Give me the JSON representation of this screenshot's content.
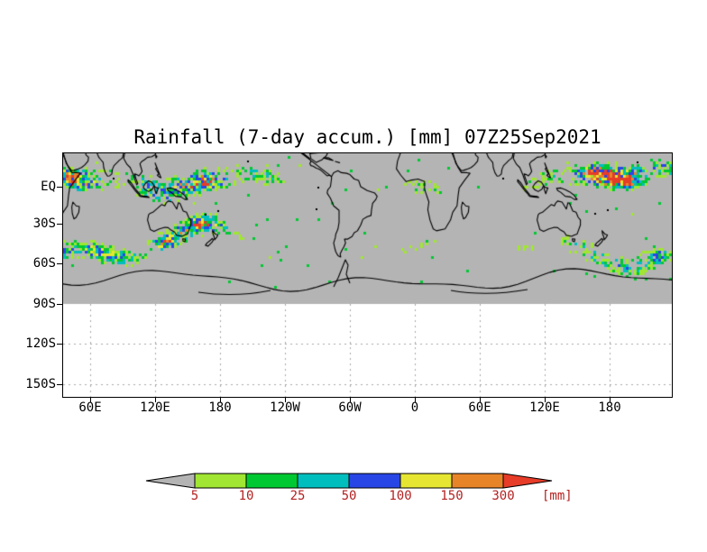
{
  "title": "Rainfall (7-day accum.) [mm] 07Z25Sep2021",
  "axes": {
    "y_ticks": [
      "EQ",
      "30S",
      "60S",
      "90S",
      "120S",
      "150S"
    ],
    "x_ticks": [
      "60E",
      "120E",
      "180",
      "120W",
      "60W",
      "0",
      "60E",
      "120E",
      "180"
    ]
  },
  "colorbar": {
    "labels": [
      "5",
      "10",
      "25",
      "50",
      "100",
      "150",
      "300"
    ],
    "unit": "[mm]",
    "label_color": "#b22222",
    "segments": [
      {
        "range": "<5",
        "color": "#b4b4b4"
      },
      {
        "range": "5-10",
        "color": "#a0e632"
      },
      {
        "range": "10-25",
        "color": "#00c832"
      },
      {
        "range": "25-50",
        "color": "#00bebe"
      },
      {
        "range": "50-100",
        "color": "#2846e6"
      },
      {
        "range": "100-150",
        "color": "#e6e632"
      },
      {
        "range": "150-300",
        "color": "#e88428"
      },
      {
        "range": ">300",
        "color": "#e63c28"
      }
    ]
  },
  "map": {
    "background_color": "#b4b4b4",
    "below_90s_color": "#ffffff",
    "coast_color": "#000000",
    "grid_color": "#a8a8a8",
    "frame_color": "#000000",
    "rain_colors": [
      "#a0e632",
      "#00c832",
      "#00bebe",
      "#2846e6",
      "#e6e632",
      "#e88428",
      "#e63c28"
    ]
  },
  "chart_data": {
    "type": "heatmap",
    "title": "Rainfall (7-day accum.) [mm] 07Z25Sep2021",
    "variable": "7-day accumulated rainfall",
    "unit": "mm",
    "time_label": "07Z25Sep2021",
    "levels": [
      5,
      10,
      25,
      50,
      100,
      150,
      300
    ],
    "level_colors": [
      "#b4b4b4",
      "#a0e632",
      "#00c832",
      "#00bebe",
      "#2846e6",
      "#e6e632",
      "#e88428",
      "#e63c28"
    ],
    "level_meaning": "gray <5mm, then shaded classes 5-10, 10-25, 25-50, 50-100, 100-150, 150-300, >300 mm",
    "x_tick_labels": [
      "60E",
      "120E",
      "180",
      "120W",
      "60W",
      "0",
      "60E",
      "120E",
      "180"
    ],
    "y_tick_labels": [
      "EQ",
      "30S",
      "60S",
      "90S",
      "120S",
      "150S"
    ],
    "legend_position": "bottom horizontal arrow colorbar",
    "grid": "dashed gray gridlines, visible in blank region south of the 90S label",
    "pattern_summary": [
      "Dense multicolor (green/cyan/blue with sparse yellow-orange-red) rainfall speckle band along the equator across the whole map",
      "Wavy mid-latitude storm-track band of mostly green/cyan with blue cores between about 30S and 60S",
      "Plain gray (below 5 mm / no data) elsewhere, including Antarctic coast region",
      "Region plotted south of the 90S gridline is blank white with dashed gridlines",
      "Black coastlines drawn over gray background; longitude axis wraps so Africa, Australia and Asia appear twice"
    ]
  }
}
